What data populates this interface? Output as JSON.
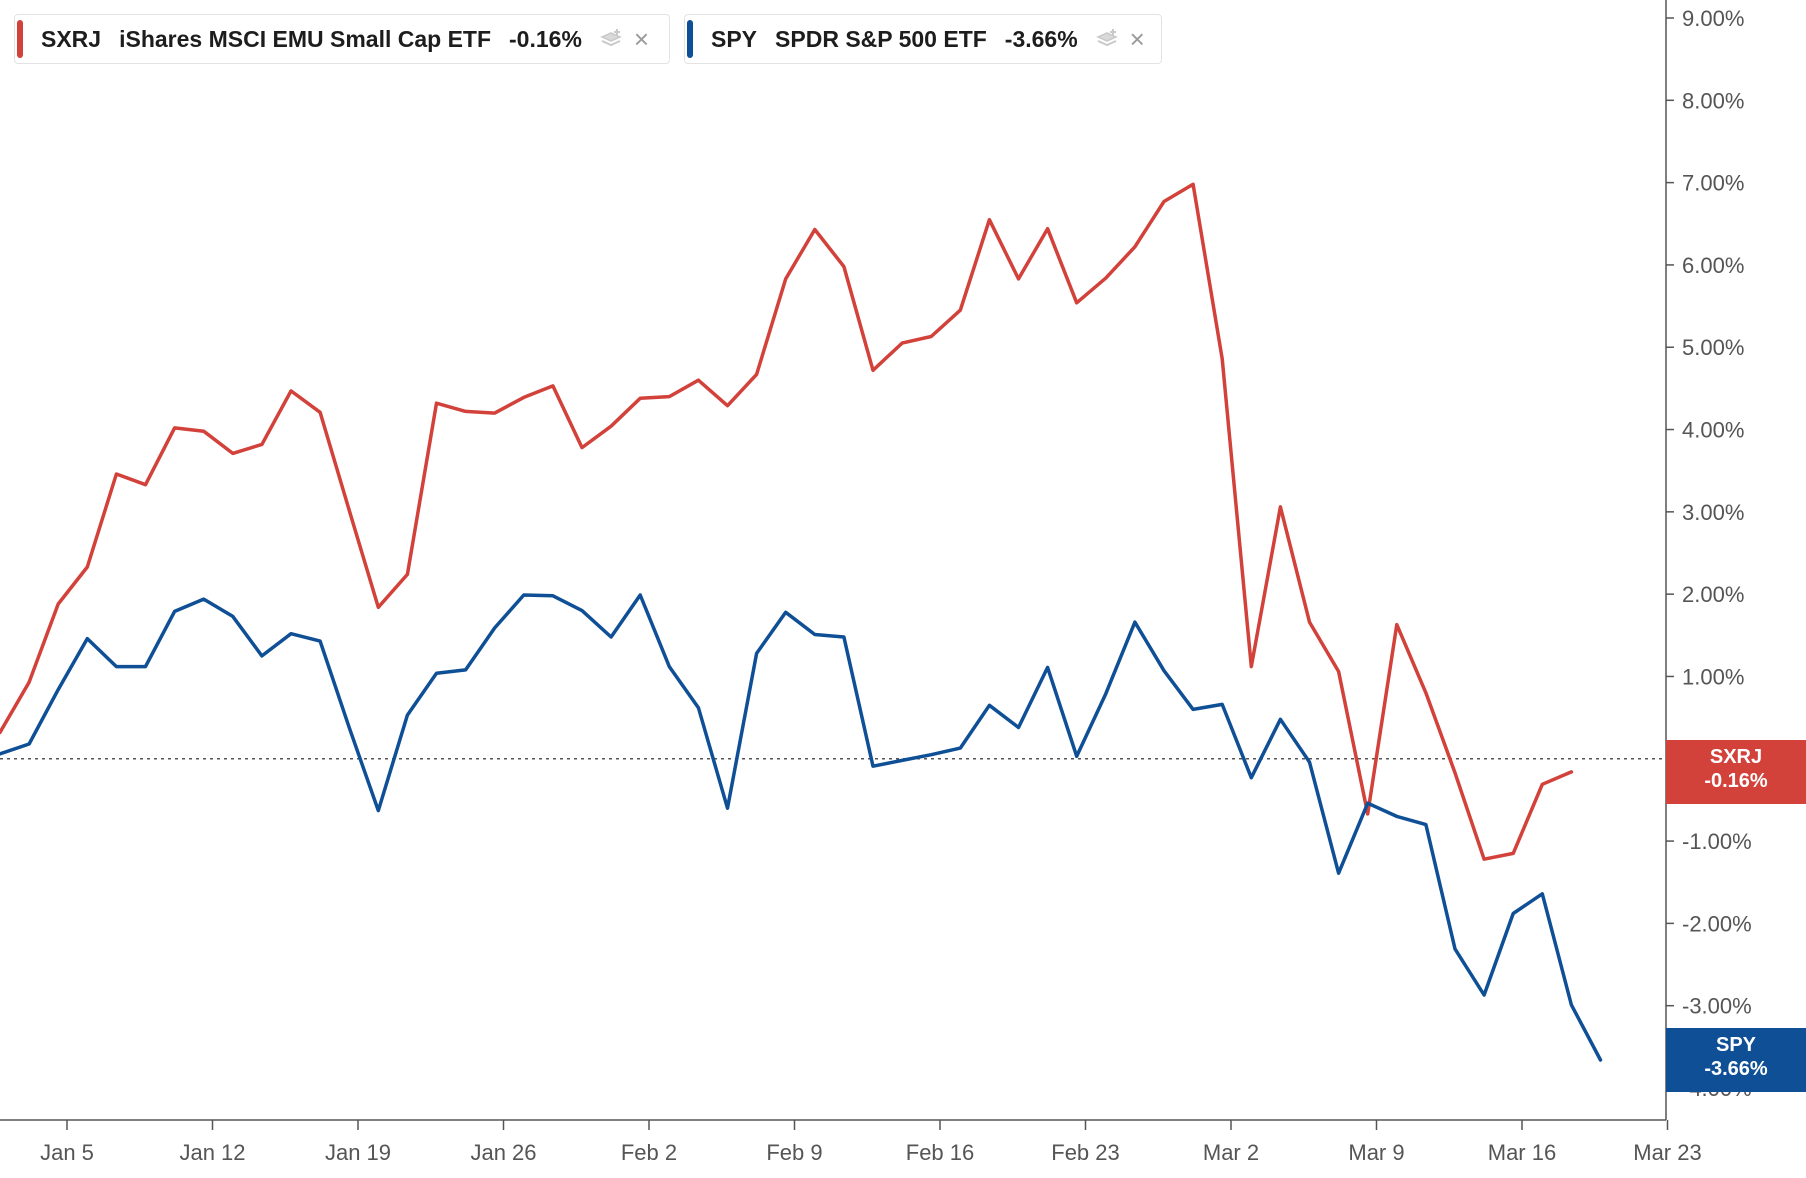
{
  "legend": [
    {
      "symbol": "SXRJ",
      "name": "iShares MSCI EMU Small Cap ETF",
      "change": "-0.16%",
      "color": "#d2413a",
      "icon": "layers-add-icon",
      "close_icon": "close-icon",
      "close": "×"
    },
    {
      "symbol": "SPY",
      "name": "SPDR S&P 500 ETF",
      "change": "-3.66%",
      "color": "#0f4f96",
      "icon": "layers-add-icon",
      "close_icon": "close-icon",
      "close": "×"
    }
  ],
  "tags": [
    {
      "symbol": "SXRJ",
      "value": "-0.16%",
      "color": "#d2413a"
    },
    {
      "symbol": "SPY",
      "value": "-3.66%",
      "color": "#0f4f96"
    }
  ],
  "chart_data": {
    "type": "line",
    "ylim": [
      -4.0,
      9.0
    ],
    "yticks": [
      9,
      8,
      7,
      6,
      5,
      4,
      3,
      2,
      1,
      0,
      -1,
      -2,
      -3,
      -4
    ],
    "ytick_labels": [
      "9.00%",
      "8.00%",
      "7.00%",
      "6.00%",
      "5.00%",
      "4.00%",
      "3.00%",
      "2.00%",
      "1.00%",
      "0.00%",
      "-1.00%",
      "-2.00%",
      "-3.00%",
      "-4.00%"
    ],
    "xticks": [
      "Jan 5",
      "Jan 12",
      "Jan 19",
      "Jan 26",
      "Feb 2",
      "Feb 9",
      "Feb 16",
      "Feb 23",
      "Mar 2",
      "Mar 9",
      "Mar 16",
      "Mar 23"
    ],
    "zero_line": "dotted",
    "series": [
      {
        "name": "SXRJ",
        "color": "#d2413a",
        "values": [
          0.32,
          0.93,
          1.88,
          2.33,
          3.46,
          3.33,
          4.02,
          3.98,
          3.71,
          3.82,
          4.47,
          4.21,
          3.02,
          1.84,
          2.24,
          4.32,
          4.22,
          4.2,
          4.39,
          4.53,
          3.78,
          4.04,
          4.38,
          4.4,
          4.6,
          4.29,
          4.67,
          5.83,
          6.43,
          5.98,
          4.72,
          5.05,
          5.13,
          5.45,
          6.55,
          5.83,
          6.44,
          5.54,
          5.84,
          6.22,
          6.77,
          6.98,
          4.86,
          1.12,
          3.06,
          1.66,
          1.06,
          -0.67,
          1.63,
          0.8,
          -0.17,
          -1.22,
          -1.15,
          -0.31,
          -0.16
        ]
      },
      {
        "name": "SPY",
        "color": "#0f4f96",
        "values": [
          0.06,
          0.18,
          0.84,
          1.46,
          1.12,
          1.12,
          1.79,
          1.94,
          1.73,
          1.25,
          1.52,
          1.43,
          0.38,
          -0.63,
          0.53,
          1.04,
          1.08,
          1.59,
          1.99,
          1.98,
          1.8,
          1.48,
          1.99,
          1.12,
          0.62,
          -0.6,
          1.28,
          1.78,
          1.51,
          1.48,
          -0.09,
          -0.02,
          0.05,
          0.13,
          0.65,
          0.38,
          1.11,
          0.03,
          0.79,
          1.66,
          1.07,
          0.6,
          0.66,
          -0.23,
          0.48,
          -0.04,
          -1.39,
          -0.54,
          -0.7,
          -0.8,
          -2.31,
          -2.87,
          -1.88,
          -1.64,
          -2.99,
          -3.66
        ]
      }
    ]
  }
}
